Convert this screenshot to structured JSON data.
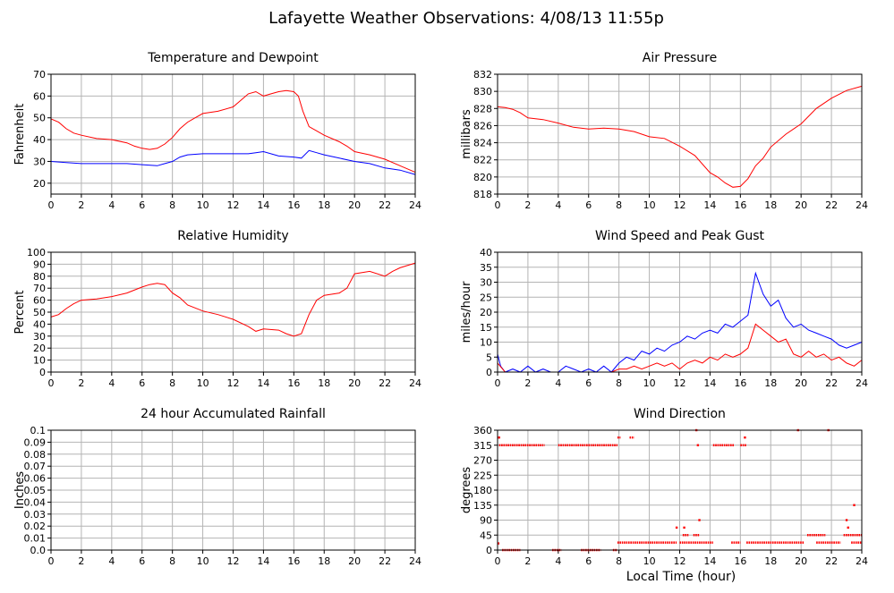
{
  "page": {
    "title": "Lafayette Weather Observations: 4/08/13 11:55p",
    "xlabel": "Local Time (hour)"
  },
  "colors": {
    "red": "#ff0000",
    "blue": "#0000ff",
    "grid": "#b4b4b4",
    "axis": "#000000"
  },
  "chart_data": [
    {
      "id": "temperature",
      "type": "line",
      "title": "Temperature and Dewpoint",
      "ylabel": "Fahrenheit",
      "xlim": [
        0,
        24
      ],
      "ylim": [
        15,
        70
      ],
      "xticks": [
        0,
        2,
        4,
        6,
        8,
        10,
        12,
        14,
        16,
        18,
        20,
        22,
        24
      ],
      "yticks": [
        20,
        30,
        40,
        50,
        60,
        70
      ],
      "grid": true,
      "series": [
        {
          "color": "#ff0000",
          "x": [
            0,
            0.5,
            1,
            1.5,
            2,
            3,
            4,
            5,
            5.5,
            6,
            6.5,
            7,
            7.5,
            8,
            8.5,
            9,
            9.5,
            10,
            11,
            12,
            12.5,
            13,
            13.5,
            14,
            14.5,
            15,
            15.5,
            16,
            16.3,
            16.6,
            17,
            17.5,
            18,
            19,
            19.5,
            20,
            21,
            22,
            23,
            24
          ],
          "y": [
            49.5,
            48,
            45,
            43,
            42,
            40.5,
            40,
            38.5,
            37,
            36,
            35.5,
            36,
            38,
            41,
            45,
            48,
            50,
            52,
            53,
            55,
            58,
            61,
            62,
            60,
            61,
            62,
            62.5,
            62,
            60,
            53,
            46,
            44,
            42,
            39,
            37,
            34.5,
            33,
            31,
            28,
            25
          ]
        },
        {
          "color": "#0000ff",
          "x": [
            0,
            1,
            2,
            3,
            4,
            5,
            6,
            7,
            7.5,
            8,
            8.5,
            9,
            10,
            11,
            12,
            13,
            13.5,
            14,
            15,
            16,
            16.5,
            17,
            17.5,
            18,
            19,
            20,
            21,
            22,
            23,
            24
          ],
          "y": [
            30,
            29.5,
            29,
            29,
            29,
            29,
            28.5,
            28,
            29,
            30,
            32,
            33,
            33.5,
            33.5,
            33.5,
            33.5,
            34,
            34.5,
            32.5,
            32,
            31.5,
            35,
            34,
            33,
            31.5,
            30,
            29,
            27,
            26,
            24
          ]
        }
      ]
    },
    {
      "id": "pressure",
      "type": "line",
      "title": "Air Pressure",
      "ylabel": "millibars",
      "xlim": [
        0,
        24
      ],
      "ylim": [
        818,
        832
      ],
      "xticks": [
        0,
        2,
        4,
        6,
        8,
        10,
        12,
        14,
        16,
        18,
        20,
        22,
        24
      ],
      "yticks": [
        818,
        820,
        822,
        824,
        826,
        828,
        830,
        832
      ],
      "grid": true,
      "series": [
        {
          "color": "#ff0000",
          "x": [
            0,
            0.5,
            1,
            1.5,
            2,
            3,
            4,
            5,
            6,
            7,
            8,
            9,
            10,
            11,
            12,
            13,
            14,
            14.5,
            15,
            15.5,
            16,
            16.5,
            17,
            17.5,
            18,
            19,
            20,
            21,
            22,
            23,
            24
          ],
          "y": [
            828.2,
            828.1,
            827.9,
            827.5,
            826.9,
            826.7,
            826.3,
            825.8,
            825.6,
            825.7,
            825.6,
            825.3,
            824.7,
            824.5,
            823.6,
            822.5,
            820.5,
            820,
            819.3,
            818.8,
            818.9,
            819.8,
            821.3,
            822.2,
            823.5,
            825,
            826.2,
            828,
            829.2,
            830.1,
            830.6
          ]
        }
      ]
    },
    {
      "id": "humidity",
      "type": "line",
      "title": "Relative Humidity",
      "ylabel": "Percent",
      "xlim": [
        0,
        24
      ],
      "ylim": [
        0,
        100
      ],
      "xticks": [
        0,
        2,
        4,
        6,
        8,
        10,
        12,
        14,
        16,
        18,
        20,
        22,
        24
      ],
      "yticks": [
        0,
        10,
        20,
        30,
        40,
        50,
        60,
        70,
        80,
        90,
        100
      ],
      "grid": true,
      "series": [
        {
          "color": "#ff0000",
          "x": [
            0,
            0.5,
            1,
            1.5,
            2,
            3,
            4,
            5,
            6,
            6.5,
            7,
            7.5,
            8,
            8.5,
            9,
            10,
            11,
            12,
            13,
            13.5,
            14,
            15,
            15.5,
            16,
            16.5,
            17,
            17.5,
            18,
            19,
            19.5,
            20,
            21,
            22,
            22.5,
            23,
            24
          ],
          "y": [
            46,
            48,
            53,
            57,
            60,
            61,
            63,
            66,
            71,
            73,
            74,
            73,
            66,
            62,
            56,
            51,
            48,
            44,
            38,
            34,
            36,
            35,
            32,
            30,
            32,
            48,
            60,
            64,
            66,
            70,
            82,
            84,
            80,
            84,
            87,
            91
          ]
        }
      ]
    },
    {
      "id": "wind",
      "type": "line",
      "title": "Wind Speed and Peak Gust",
      "ylabel": "miles/hour",
      "xlim": [
        0,
        24
      ],
      "ylim": [
        0,
        40
      ],
      "xticks": [
        0,
        2,
        4,
        6,
        8,
        10,
        12,
        14,
        16,
        18,
        20,
        22,
        24
      ],
      "yticks": [
        0,
        5,
        10,
        15,
        20,
        25,
        30,
        35,
        40
      ],
      "grid": true,
      "series": [
        {
          "color": "#0000ff",
          "x": [
            0,
            0.2,
            0.5,
            1,
            1.5,
            2,
            2.5,
            3,
            3.5,
            4,
            4.5,
            5,
            5.5,
            6,
            6.5,
            7,
            7.5,
            8,
            8.5,
            9,
            9.5,
            10,
            10.5,
            11,
            11.5,
            12,
            12.5,
            13,
            13.5,
            14,
            14.5,
            15,
            15.5,
            16,
            16.5,
            17,
            17.5,
            18,
            18.5,
            19,
            19.5,
            20,
            20.5,
            21,
            21.5,
            22,
            22.5,
            23,
            23.5,
            24
          ],
          "y": [
            6,
            2,
            0,
            1,
            0,
            2,
            0,
            1,
            0,
            0,
            2,
            1,
            0,
            1,
            0,
            2,
            0,
            3,
            5,
            4,
            7,
            6,
            8,
            7,
            9,
            10,
            12,
            11,
            13,
            14,
            13,
            16,
            15,
            17,
            19,
            33,
            26,
            22,
            24,
            18,
            15,
            16,
            14,
            13,
            12,
            11,
            9,
            8,
            9,
            10
          ]
        },
        {
          "color": "#ff0000",
          "x": [
            0,
            0.5,
            1,
            2,
            3,
            4,
            5,
            6,
            7,
            7.5,
            8,
            8.5,
            9,
            9.5,
            10,
            10.5,
            11,
            11.5,
            12,
            12.5,
            13,
            13.5,
            14,
            14.5,
            15,
            15.5,
            16,
            16.5,
            17,
            17.5,
            18,
            18.5,
            19,
            19.5,
            20,
            20.5,
            21,
            21.5,
            22,
            22.5,
            23,
            23.5,
            24
          ],
          "y": [
            3,
            0,
            0,
            0,
            0,
            0,
            0,
            0,
            0,
            0,
            1,
            1,
            2,
            1,
            2,
            3,
            2,
            3,
            1,
            3,
            4,
            3,
            5,
            4,
            6,
            5,
            6,
            8,
            16,
            14,
            12,
            10,
            11,
            6,
            5,
            7,
            5,
            6,
            4,
            5,
            3,
            2,
            4
          ]
        }
      ]
    },
    {
      "id": "rainfall",
      "type": "line",
      "title": "24 hour Accumulated Rainfall",
      "ylabel": "Inches",
      "xlim": [
        0,
        24
      ],
      "ylim": [
        0,
        0.1
      ],
      "xticks": [
        0,
        2,
        4,
        6,
        8,
        10,
        12,
        14,
        16,
        18,
        20,
        22,
        24
      ],
      "yticks": [
        "0.0",
        "0.01",
        "0.02",
        "0.03",
        "0.04",
        "0.05",
        "0.06",
        "0.07",
        "0.08",
        "0.09",
        "0.1"
      ],
      "grid": true,
      "series": [
        {
          "color": "#ff0000",
          "x": [
            0,
            24
          ],
          "y": [
            0,
            0
          ]
        }
      ]
    },
    {
      "id": "direction",
      "type": "scatter",
      "title": "Wind Direction",
      "ylabel": "degrees",
      "xlim": [
        0,
        24
      ],
      "ylim": [
        0,
        360
      ],
      "xticks": [
        0,
        2,
        4,
        6,
        8,
        10,
        12,
        14,
        16,
        18,
        20,
        22,
        24
      ],
      "yticks": [
        0,
        45,
        90,
        135,
        180,
        225,
        270,
        315,
        360
      ],
      "grid": true,
      "series": [
        {
          "color": "#ff0000",
          "segments": [
            {
              "x": [
                0.1,
                3.1
              ],
              "y": 315
            },
            {
              "x": [
                4.0,
                7.9
              ],
              "y": 315
            },
            {
              "x": [
                8.7,
                9.0
              ],
              "y": 338
            },
            {
              "x": [
                7.9,
                8.1
              ],
              "y": 338
            },
            {
              "x": [
                14.2,
                15.6
              ],
              "y": 315
            },
            {
              "x": [
                16.0,
                16.4
              ],
              "y": 315
            },
            {
              "x": [
                0.3,
                1.5
              ],
              "y": 0
            },
            {
              "x": [
                3.6,
                4.2
              ],
              "y": 0
            },
            {
              "x": [
                5.5,
                6.8
              ],
              "y": 0
            },
            {
              "x": [
                7.6,
                7.9
              ],
              "y": 0
            },
            {
              "x": [
                7.9,
                11.8
              ],
              "y": 22.5
            },
            {
              "x": [
                12.0,
                14.2
              ],
              "y": 22.5
            },
            {
              "x": [
                15.4,
                16.0
              ],
              "y": 22.5
            },
            {
              "x": [
                16.4,
                20.2
              ],
              "y": 22.5
            },
            {
              "x": [
                21.0,
                22.6
              ],
              "y": 22.5
            },
            {
              "x": [
                23.3,
                24.0
              ],
              "y": 22.5
            },
            {
              "x": [
                20.4,
                21.6
              ],
              "y": 45
            },
            {
              "x": [
                22.8,
                24.0
              ],
              "y": 45
            },
            {
              "x": [
                12.2,
                12.6
              ],
              "y": 45
            },
            {
              "x": [
                12.9,
                13.3
              ],
              "y": 45
            }
          ],
          "x": [
            0.05,
            0.1,
            11.8,
            12.3,
            13.1,
            13.2,
            13.3,
            16.3,
            19.8,
            21.8,
            23.0,
            23.1,
            23.5
          ],
          "y": [
            20,
            338,
            67.5,
            67.5,
            360,
            315,
            90,
            338,
            360,
            360,
            90,
            67.5,
            135
          ]
        }
      ]
    }
  ]
}
